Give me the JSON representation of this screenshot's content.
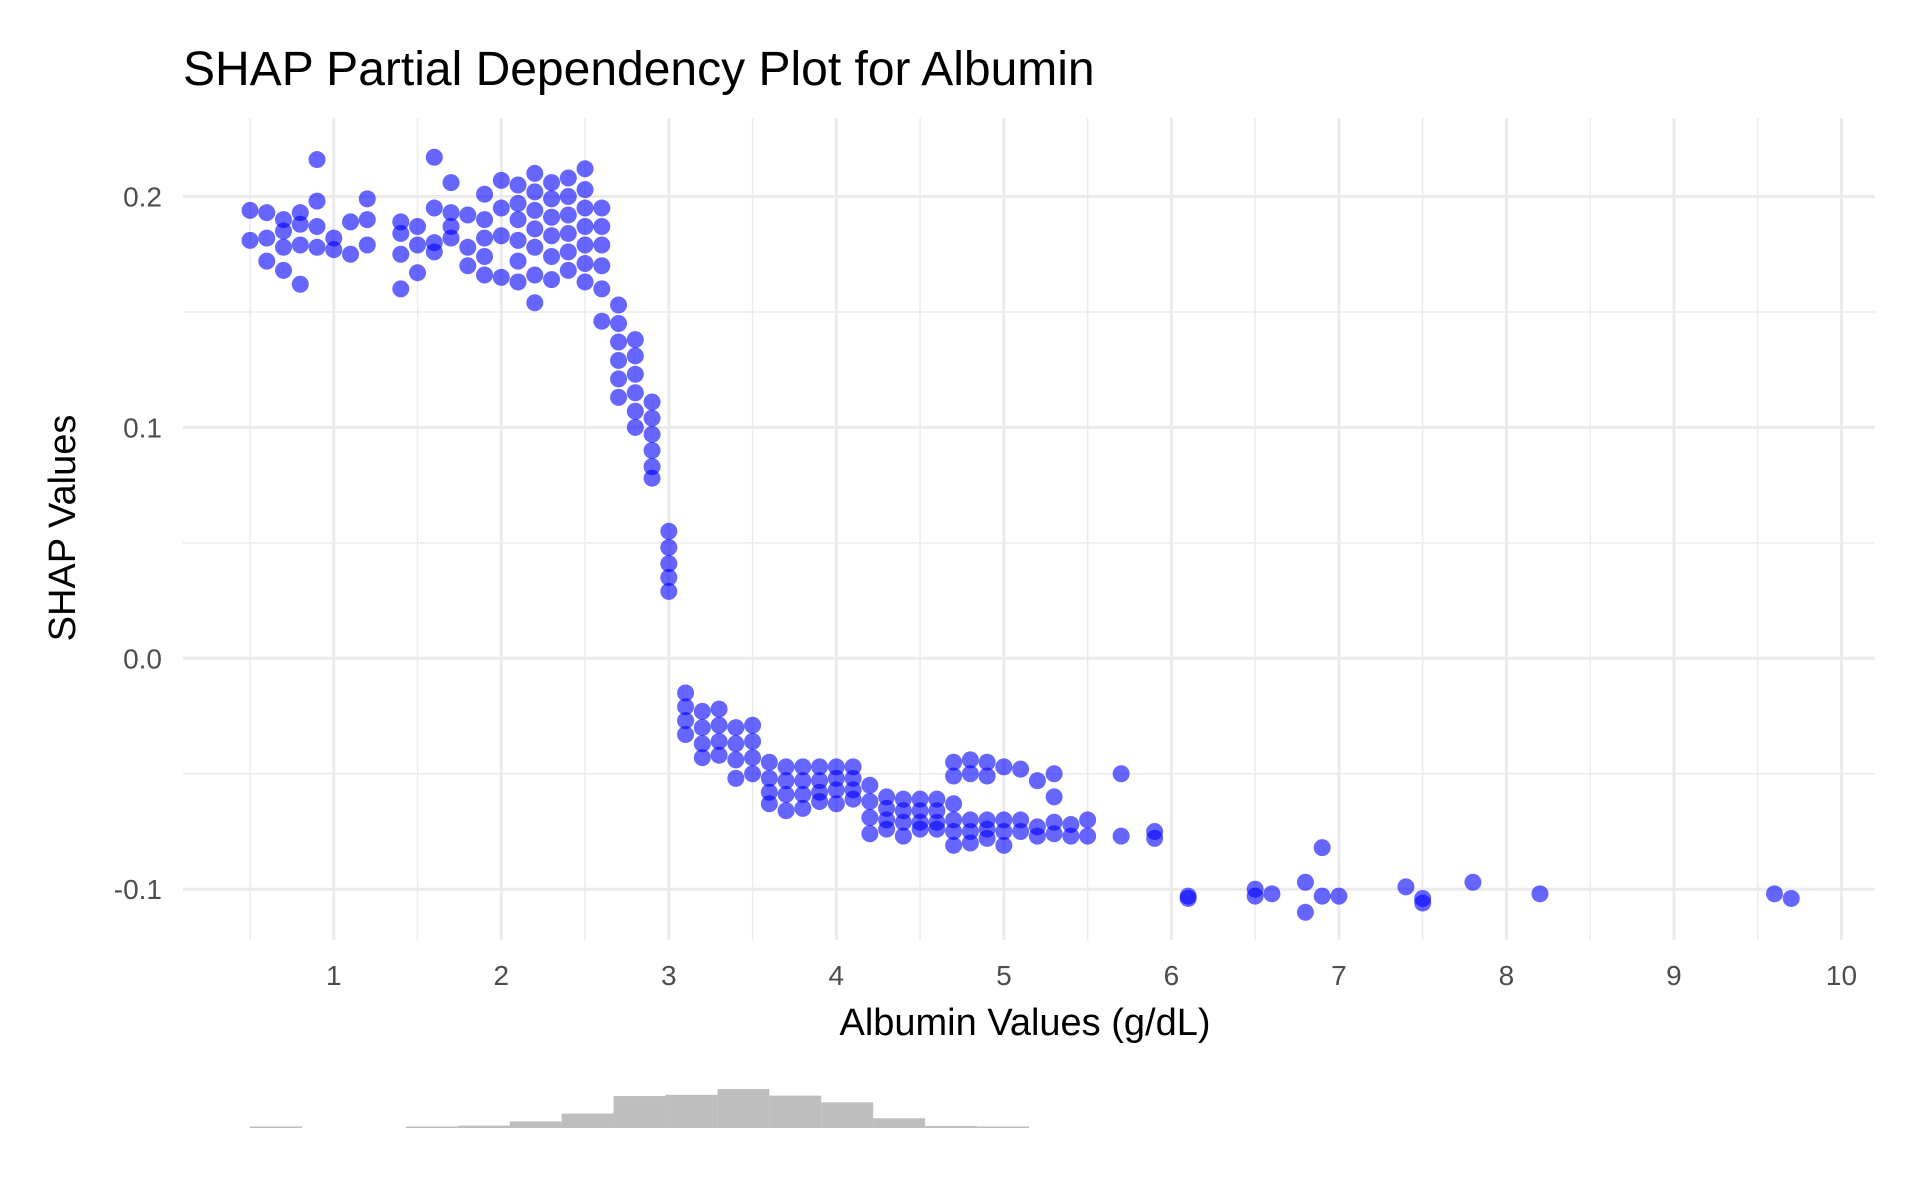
{
  "chart_data": {
    "type": "scatter",
    "title": "SHAP Partial Dependency Plot for Albumin",
    "xlabel": "Albumin Values (g/dL)",
    "ylabel": "SHAP Values",
    "xlim": [
      0.1,
      10.2
    ],
    "ylim": [
      -0.122,
      0.234
    ],
    "x_ticks": [
      1,
      2,
      3,
      4,
      5,
      6,
      7,
      8,
      9,
      10
    ],
    "x_tick_labels": [
      "1",
      "2",
      "3",
      "4",
      "5",
      "6",
      "7",
      "8",
      "9",
      "10"
    ],
    "y_ticks": [
      -0.1,
      0.0,
      0.1,
      0.2
    ],
    "y_tick_labels": [
      "-0.1",
      "0.0",
      "0.1",
      "0.2"
    ],
    "grid": true,
    "point_color": "#0000ff",
    "point_opacity": 0.6,
    "histogram_color": "#bebebe",
    "histogram": {
      "bin_start": 0.5,
      "bin_width": 0.31,
      "relative_heights": [
        0.03,
        0.0,
        0.0,
        0.03,
        0.06,
        0.17,
        0.37,
        0.82,
        0.85,
        1.0,
        0.83,
        0.66,
        0.25,
        0.05,
        0.02
      ]
    },
    "points": [
      {
        "x": 0.5,
        "y": 0.194
      },
      {
        "x": 0.5,
        "y": 0.181
      },
      {
        "x": 0.6,
        "y": 0.193
      },
      {
        "x": 0.6,
        "y": 0.182
      },
      {
        "x": 0.6,
        "y": 0.172
      },
      {
        "x": 0.7,
        "y": 0.19
      },
      {
        "x": 0.7,
        "y": 0.185
      },
      {
        "x": 0.7,
        "y": 0.178
      },
      {
        "x": 0.7,
        "y": 0.168
      },
      {
        "x": 0.8,
        "y": 0.193
      },
      {
        "x": 0.8,
        "y": 0.188
      },
      {
        "x": 0.8,
        "y": 0.179
      },
      {
        "x": 0.8,
        "y": 0.162
      },
      {
        "x": 0.9,
        "y": 0.216
      },
      {
        "x": 0.9,
        "y": 0.198
      },
      {
        "x": 0.9,
        "y": 0.187
      },
      {
        "x": 0.9,
        "y": 0.178
      },
      {
        "x": 1.0,
        "y": 0.182
      },
      {
        "x": 1.0,
        "y": 0.177
      },
      {
        "x": 1.1,
        "y": 0.189
      },
      {
        "x": 1.1,
        "y": 0.175
      },
      {
        "x": 1.2,
        "y": 0.199
      },
      {
        "x": 1.2,
        "y": 0.19
      },
      {
        "x": 1.2,
        "y": 0.179
      },
      {
        "x": 1.4,
        "y": 0.189
      },
      {
        "x": 1.4,
        "y": 0.184
      },
      {
        "x": 1.4,
        "y": 0.175
      },
      {
        "x": 1.4,
        "y": 0.16
      },
      {
        "x": 1.5,
        "y": 0.187
      },
      {
        "x": 1.5,
        "y": 0.179
      },
      {
        "x": 1.5,
        "y": 0.167
      },
      {
        "x": 1.6,
        "y": 0.217
      },
      {
        "x": 1.6,
        "y": 0.195
      },
      {
        "x": 1.6,
        "y": 0.18
      },
      {
        "x": 1.6,
        "y": 0.176
      },
      {
        "x": 1.7,
        "y": 0.206
      },
      {
        "x": 1.7,
        "y": 0.193
      },
      {
        "x": 1.7,
        "y": 0.187
      },
      {
        "x": 1.7,
        "y": 0.182
      },
      {
        "x": 1.8,
        "y": 0.192
      },
      {
        "x": 1.8,
        "y": 0.178
      },
      {
        "x": 1.8,
        "y": 0.17
      },
      {
        "x": 1.9,
        "y": 0.201
      },
      {
        "x": 1.9,
        "y": 0.19
      },
      {
        "x": 1.9,
        "y": 0.182
      },
      {
        "x": 1.9,
        "y": 0.174
      },
      {
        "x": 1.9,
        "y": 0.166
      },
      {
        "x": 2.0,
        "y": 0.207
      },
      {
        "x": 2.0,
        "y": 0.195
      },
      {
        "x": 2.0,
        "y": 0.183
      },
      {
        "x": 2.0,
        "y": 0.165
      },
      {
        "x": 2.1,
        "y": 0.205
      },
      {
        "x": 2.1,
        "y": 0.197
      },
      {
        "x": 2.1,
        "y": 0.19
      },
      {
        "x": 2.1,
        "y": 0.181
      },
      {
        "x": 2.1,
        "y": 0.172
      },
      {
        "x": 2.1,
        "y": 0.163
      },
      {
        "x": 2.2,
        "y": 0.21
      },
      {
        "x": 2.2,
        "y": 0.202
      },
      {
        "x": 2.2,
        "y": 0.194
      },
      {
        "x": 2.2,
        "y": 0.186
      },
      {
        "x": 2.2,
        "y": 0.178
      },
      {
        "x": 2.2,
        "y": 0.166
      },
      {
        "x": 2.2,
        "y": 0.154
      },
      {
        "x": 2.3,
        "y": 0.206
      },
      {
        "x": 2.3,
        "y": 0.199
      },
      {
        "x": 2.3,
        "y": 0.191
      },
      {
        "x": 2.3,
        "y": 0.183
      },
      {
        "x": 2.3,
        "y": 0.174
      },
      {
        "x": 2.3,
        "y": 0.164
      },
      {
        "x": 2.4,
        "y": 0.208
      },
      {
        "x": 2.4,
        "y": 0.2
      },
      {
        "x": 2.4,
        "y": 0.192
      },
      {
        "x": 2.4,
        "y": 0.184
      },
      {
        "x": 2.4,
        "y": 0.176
      },
      {
        "x": 2.4,
        "y": 0.168
      },
      {
        "x": 2.5,
        "y": 0.212
      },
      {
        "x": 2.5,
        "y": 0.203
      },
      {
        "x": 2.5,
        "y": 0.195
      },
      {
        "x": 2.5,
        "y": 0.187
      },
      {
        "x": 2.5,
        "y": 0.179
      },
      {
        "x": 2.5,
        "y": 0.171
      },
      {
        "x": 2.5,
        "y": 0.163
      },
      {
        "x": 2.6,
        "y": 0.195
      },
      {
        "x": 2.6,
        "y": 0.187
      },
      {
        "x": 2.6,
        "y": 0.179
      },
      {
        "x": 2.6,
        "y": 0.17
      },
      {
        "x": 2.6,
        "y": 0.16
      },
      {
        "x": 2.6,
        "y": 0.146
      },
      {
        "x": 2.7,
        "y": 0.153
      },
      {
        "x": 2.7,
        "y": 0.145
      },
      {
        "x": 2.7,
        "y": 0.137
      },
      {
        "x": 2.7,
        "y": 0.129
      },
      {
        "x": 2.7,
        "y": 0.121
      },
      {
        "x": 2.7,
        "y": 0.113
      },
      {
        "x": 2.8,
        "y": 0.138
      },
      {
        "x": 2.8,
        "y": 0.131
      },
      {
        "x": 2.8,
        "y": 0.123
      },
      {
        "x": 2.8,
        "y": 0.115
      },
      {
        "x": 2.8,
        "y": 0.107
      },
      {
        "x": 2.8,
        "y": 0.1
      },
      {
        "x": 2.9,
        "y": 0.111
      },
      {
        "x": 2.9,
        "y": 0.104
      },
      {
        "x": 2.9,
        "y": 0.097
      },
      {
        "x": 2.9,
        "y": 0.09
      },
      {
        "x": 2.9,
        "y": 0.083
      },
      {
        "x": 2.9,
        "y": 0.078
      },
      {
        "x": 3.0,
        "y": 0.055
      },
      {
        "x": 3.0,
        "y": 0.048
      },
      {
        "x": 3.0,
        "y": 0.041
      },
      {
        "x": 3.0,
        "y": 0.035
      },
      {
        "x": 3.0,
        "y": 0.029
      },
      {
        "x": 3.1,
        "y": -0.015
      },
      {
        "x": 3.1,
        "y": -0.021
      },
      {
        "x": 3.1,
        "y": -0.027
      },
      {
        "x": 3.1,
        "y": -0.033
      },
      {
        "x": 3.2,
        "y": -0.023
      },
      {
        "x": 3.2,
        "y": -0.03
      },
      {
        "x": 3.2,
        "y": -0.037
      },
      {
        "x": 3.2,
        "y": -0.043
      },
      {
        "x": 3.3,
        "y": -0.022
      },
      {
        "x": 3.3,
        "y": -0.029
      },
      {
        "x": 3.3,
        "y": -0.036
      },
      {
        "x": 3.3,
        "y": -0.042
      },
      {
        "x": 3.4,
        "y": -0.03
      },
      {
        "x": 3.4,
        "y": -0.037
      },
      {
        "x": 3.4,
        "y": -0.044
      },
      {
        "x": 3.4,
        "y": -0.052
      },
      {
        "x": 3.5,
        "y": -0.029
      },
      {
        "x": 3.5,
        "y": -0.036
      },
      {
        "x": 3.5,
        "y": -0.043
      },
      {
        "x": 3.5,
        "y": -0.05
      },
      {
        "x": 3.6,
        "y": -0.045
      },
      {
        "x": 3.6,
        "y": -0.052
      },
      {
        "x": 3.6,
        "y": -0.058
      },
      {
        "x": 3.6,
        "y": -0.063
      },
      {
        "x": 3.7,
        "y": -0.047
      },
      {
        "x": 3.7,
        "y": -0.053
      },
      {
        "x": 3.7,
        "y": -0.059
      },
      {
        "x": 3.7,
        "y": -0.066
      },
      {
        "x": 3.8,
        "y": -0.047
      },
      {
        "x": 3.8,
        "y": -0.053
      },
      {
        "x": 3.8,
        "y": -0.059
      },
      {
        "x": 3.8,
        "y": -0.065
      },
      {
        "x": 3.9,
        "y": -0.047
      },
      {
        "x": 3.9,
        "y": -0.053
      },
      {
        "x": 3.9,
        "y": -0.058
      },
      {
        "x": 3.9,
        "y": -0.062
      },
      {
        "x": 4.0,
        "y": -0.047
      },
      {
        "x": 4.0,
        "y": -0.052
      },
      {
        "x": 4.0,
        "y": -0.057
      },
      {
        "x": 4.0,
        "y": -0.063
      },
      {
        "x": 4.1,
        "y": -0.047
      },
      {
        "x": 4.1,
        "y": -0.052
      },
      {
        "x": 4.1,
        "y": -0.057
      },
      {
        "x": 4.1,
        "y": -0.061
      },
      {
        "x": 4.2,
        "y": -0.055
      },
      {
        "x": 4.2,
        "y": -0.062
      },
      {
        "x": 4.2,
        "y": -0.069
      },
      {
        "x": 4.2,
        "y": -0.076
      },
      {
        "x": 4.3,
        "y": -0.06
      },
      {
        "x": 4.3,
        "y": -0.065
      },
      {
        "x": 4.3,
        "y": -0.07
      },
      {
        "x": 4.3,
        "y": -0.074
      },
      {
        "x": 4.4,
        "y": -0.061
      },
      {
        "x": 4.4,
        "y": -0.066
      },
      {
        "x": 4.4,
        "y": -0.071
      },
      {
        "x": 4.4,
        "y": -0.077
      },
      {
        "x": 4.5,
        "y": -0.061
      },
      {
        "x": 4.5,
        "y": -0.066
      },
      {
        "x": 4.5,
        "y": -0.071
      },
      {
        "x": 4.5,
        "y": -0.074
      },
      {
        "x": 4.6,
        "y": -0.061
      },
      {
        "x": 4.6,
        "y": -0.066
      },
      {
        "x": 4.6,
        "y": -0.071
      },
      {
        "x": 4.6,
        "y": -0.074
      },
      {
        "x": 4.7,
        "y": -0.045
      },
      {
        "x": 4.7,
        "y": -0.051
      },
      {
        "x": 4.7,
        "y": -0.063
      },
      {
        "x": 4.7,
        "y": -0.07
      },
      {
        "x": 4.7,
        "y": -0.075
      },
      {
        "x": 4.7,
        "y": -0.081
      },
      {
        "x": 4.8,
        "y": -0.044
      },
      {
        "x": 4.8,
        "y": -0.05
      },
      {
        "x": 4.8,
        "y": -0.07
      },
      {
        "x": 4.8,
        "y": -0.075
      },
      {
        "x": 4.8,
        "y": -0.08
      },
      {
        "x": 4.9,
        "y": -0.045
      },
      {
        "x": 4.9,
        "y": -0.051
      },
      {
        "x": 4.9,
        "y": -0.07
      },
      {
        "x": 4.9,
        "y": -0.074
      },
      {
        "x": 4.9,
        "y": -0.078
      },
      {
        "x": 5.0,
        "y": -0.047
      },
      {
        "x": 5.0,
        "y": -0.07
      },
      {
        "x": 5.0,
        "y": -0.075
      },
      {
        "x": 5.0,
        "y": -0.081
      },
      {
        "x": 5.1,
        "y": -0.048
      },
      {
        "x": 5.1,
        "y": -0.07
      },
      {
        "x": 5.1,
        "y": -0.075
      },
      {
        "x": 5.2,
        "y": -0.053
      },
      {
        "x": 5.2,
        "y": -0.073
      },
      {
        "x": 5.2,
        "y": -0.077
      },
      {
        "x": 5.3,
        "y": -0.05
      },
      {
        "x": 5.3,
        "y": -0.06
      },
      {
        "x": 5.3,
        "y": -0.071
      },
      {
        "x": 5.3,
        "y": -0.076
      },
      {
        "x": 5.4,
        "y": -0.072
      },
      {
        "x": 5.4,
        "y": -0.077
      },
      {
        "x": 5.5,
        "y": -0.07
      },
      {
        "x": 5.5,
        "y": -0.077
      },
      {
        "x": 5.7,
        "y": -0.05
      },
      {
        "x": 5.7,
        "y": -0.077
      },
      {
        "x": 5.9,
        "y": -0.075
      },
      {
        "x": 5.9,
        "y": -0.078
      },
      {
        "x": 6.1,
        "y": -0.103
      },
      {
        "x": 6.1,
        "y": -0.104
      },
      {
        "x": 6.5,
        "y": -0.1
      },
      {
        "x": 6.5,
        "y": -0.103
      },
      {
        "x": 6.6,
        "y": -0.102
      },
      {
        "x": 6.8,
        "y": -0.097
      },
      {
        "x": 6.8,
        "y": -0.11
      },
      {
        "x": 6.9,
        "y": -0.082
      },
      {
        "x": 6.9,
        "y": -0.103
      },
      {
        "x": 7.0,
        "y": -0.103
      },
      {
        "x": 7.4,
        "y": -0.099
      },
      {
        "x": 7.5,
        "y": -0.104
      },
      {
        "x": 7.5,
        "y": -0.106
      },
      {
        "x": 7.8,
        "y": -0.097
      },
      {
        "x": 8.2,
        "y": -0.102
      },
      {
        "x": 9.6,
        "y": -0.102
      },
      {
        "x": 9.7,
        "y": -0.104
      }
    ]
  }
}
